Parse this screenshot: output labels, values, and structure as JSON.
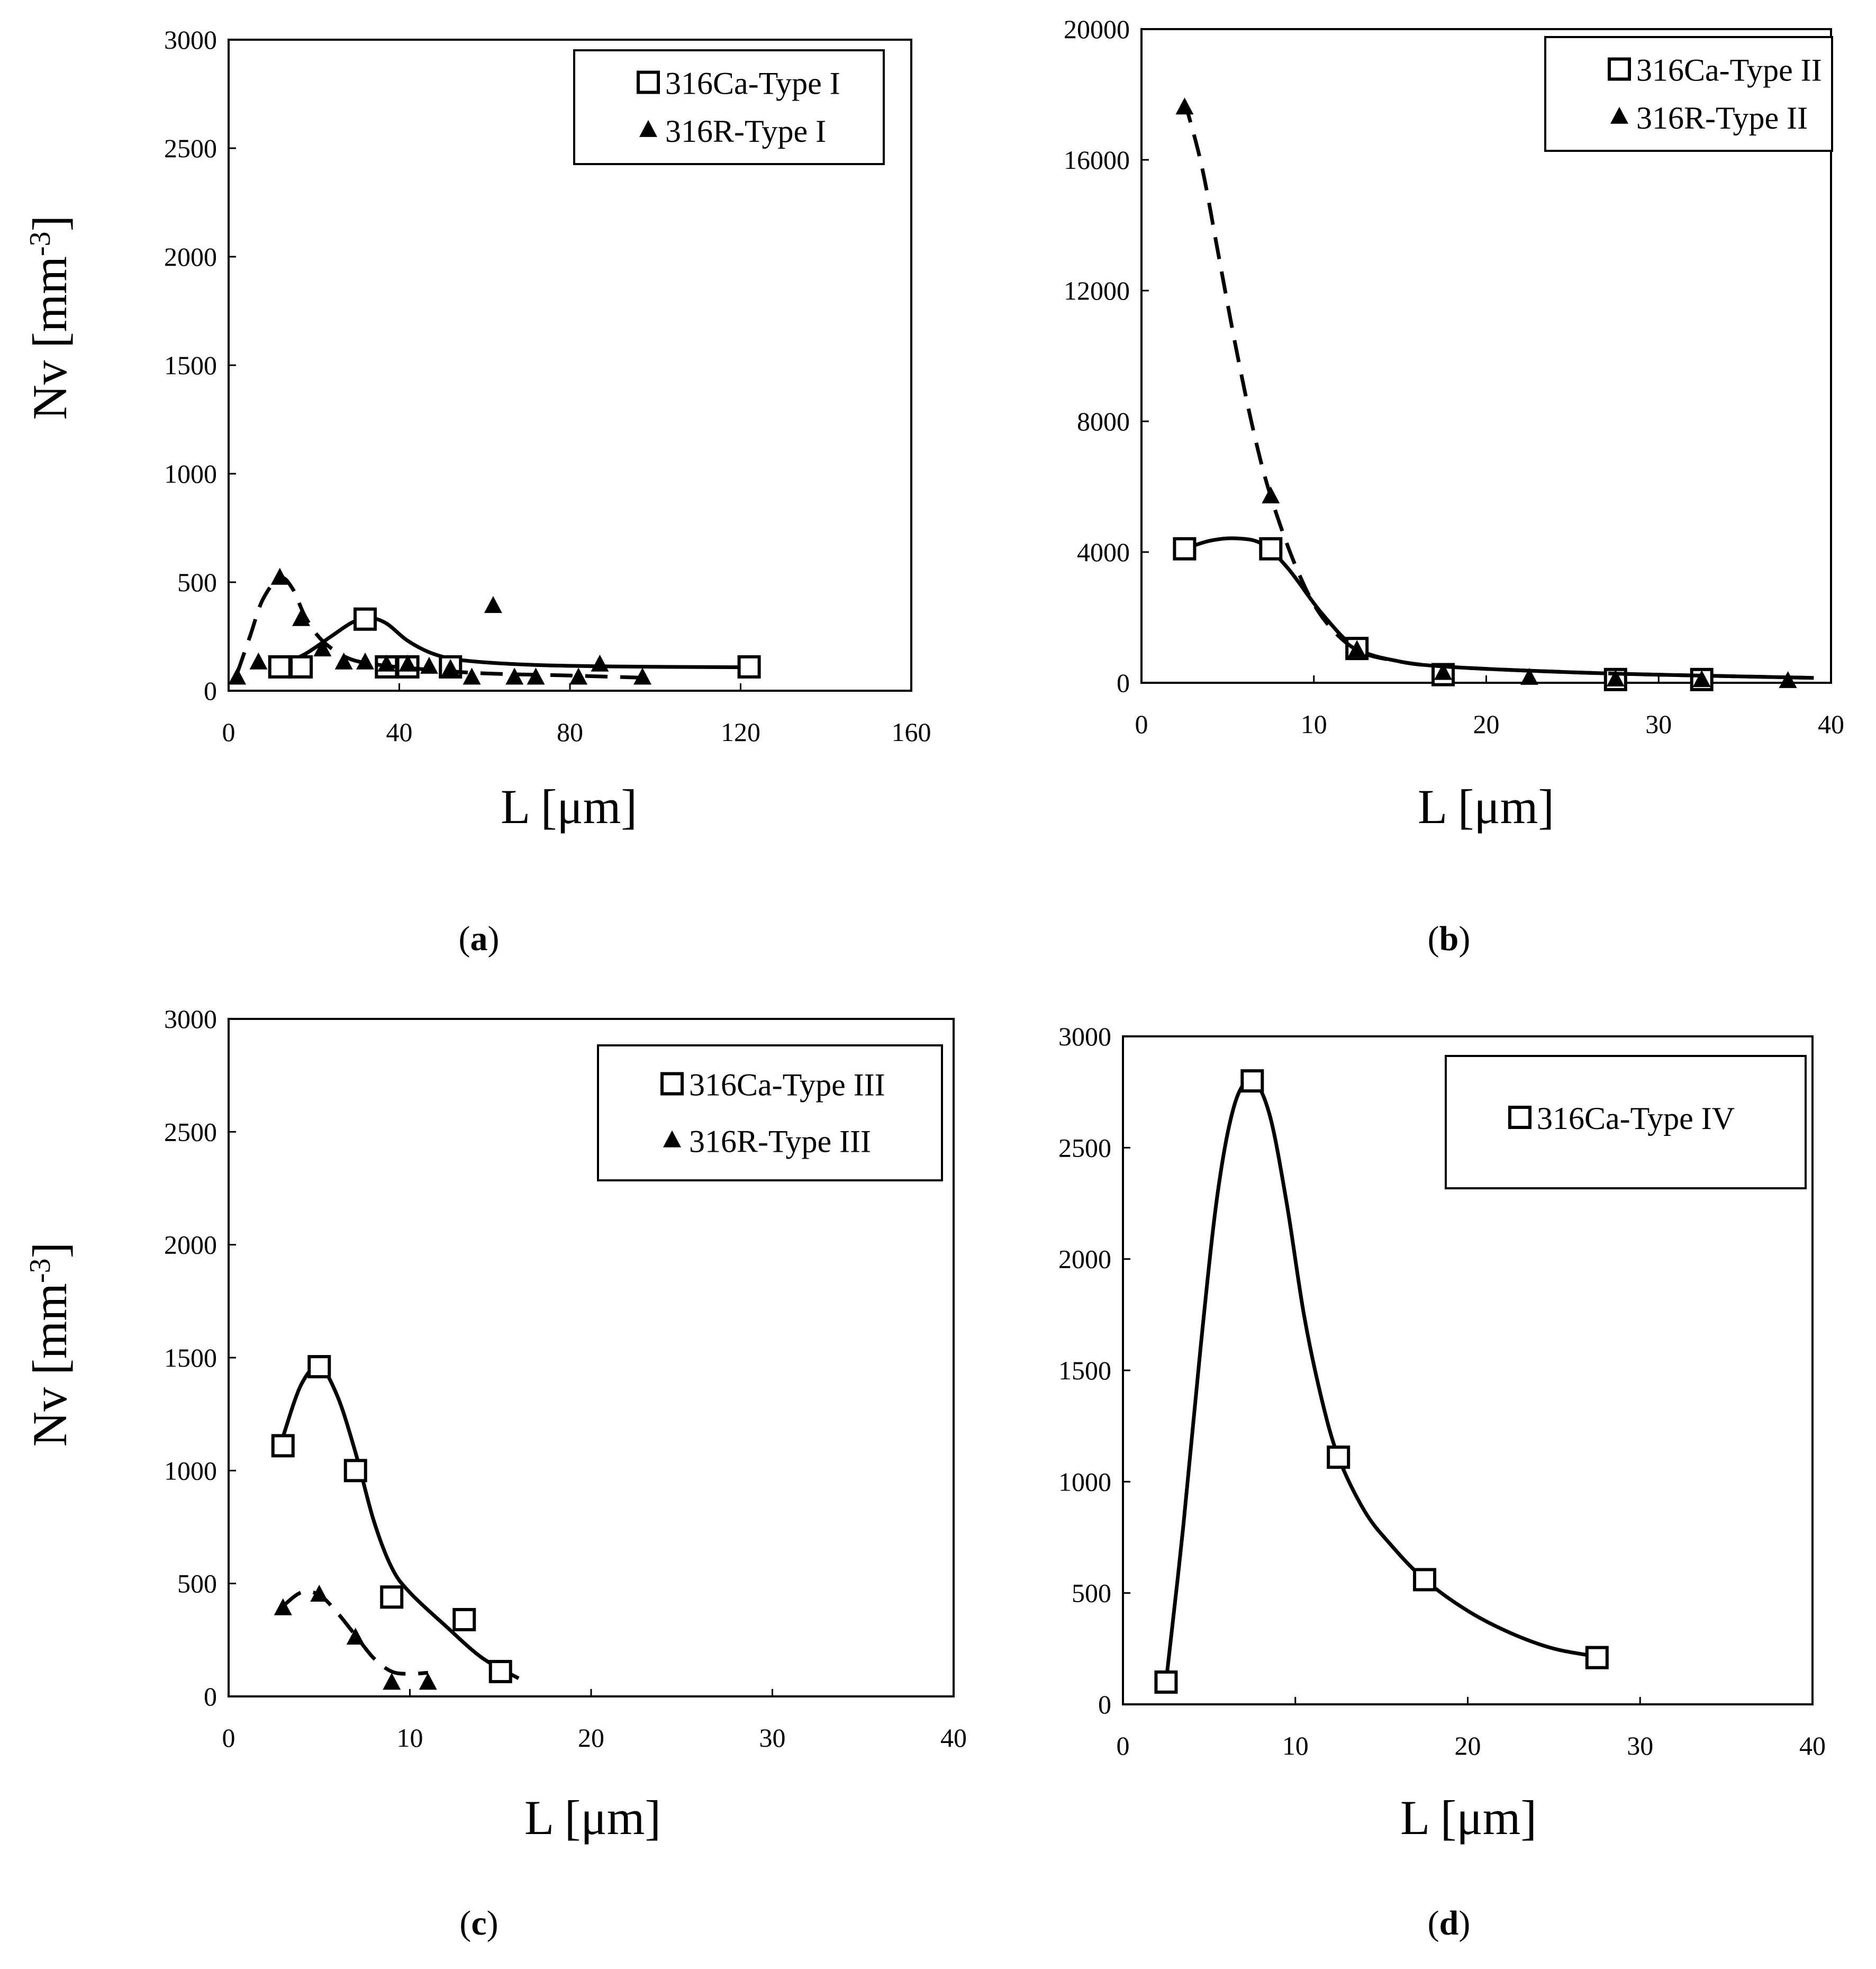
{
  "chart_data": [
    {
      "id": "a",
      "type": "scatter",
      "caption": "(a)",
      "caption_letter": "a",
      "xlabel": "L [μm]",
      "ylabel_main": "Nv [mm",
      "ylabel_sup": "-3",
      "ylabel_close": "]",
      "xlim": [
        0,
        160
      ],
      "ylim": [
        0,
        3000
      ],
      "xticks": [
        0,
        40,
        80,
        120,
        160
      ],
      "yticks": [
        0,
        500,
        1000,
        1500,
        2000,
        2500,
        3000
      ],
      "legend_position": "top-right",
      "series": [
        {
          "name": "316Ca-Type I",
          "marker": "square",
          "line": "solid",
          "x": [
            12,
            17,
            32,
            37,
            42,
            52,
            122
          ],
          "y": [
            110,
            110,
            330,
            110,
            110,
            110,
            110
          ],
          "curve": [
            [
              12,
              115
            ],
            [
              18,
              170
            ],
            [
              24,
              250
            ],
            [
              29,
              315
            ],
            [
              33,
              335
            ],
            [
              37,
              310
            ],
            [
              42,
              230
            ],
            [
              48,
              170
            ],
            [
              55,
              140
            ],
            [
              70,
              120
            ],
            [
              90,
              112
            ],
            [
              122,
              108
            ]
          ]
        },
        {
          "name": "316R-Type I",
          "marker": "triangle",
          "line": "dashed",
          "x": [
            2,
            7,
            12,
            17,
            22,
            27,
            32,
            37,
            42,
            47,
            52,
            57,
            62,
            67,
            72,
            82,
            87,
            97
          ],
          "y": [
            60,
            130,
            520,
            330,
            190,
            130,
            130,
            120,
            120,
            110,
            100,
            60,
            390,
            60,
            60,
            60,
            120,
            60
          ],
          "curve": [
            [
              2,
              80
            ],
            [
              5,
              250
            ],
            [
              8,
              420
            ],
            [
              12,
              520
            ],
            [
              15,
              470
            ],
            [
              18,
              340
            ],
            [
              22,
              230
            ],
            [
              28,
              150
            ],
            [
              35,
              120
            ],
            [
              45,
              100
            ],
            [
              60,
              80
            ],
            [
              80,
              70
            ],
            [
              97,
              60
            ]
          ]
        }
      ]
    },
    {
      "id": "b",
      "type": "scatter",
      "caption": "(b)",
      "caption_letter": "b",
      "xlabel": "L [μm]",
      "ylabel_main": "",
      "ylabel_sup": "",
      "ylabel_close": "",
      "xlim": [
        0,
        40
      ],
      "ylim": [
        0,
        20000
      ],
      "xticks": [
        0,
        10,
        20,
        30,
        40
      ],
      "yticks": [
        0,
        4000,
        8000,
        12000,
        16000,
        20000
      ],
      "legend_position": "top-right",
      "series": [
        {
          "name": "316Ca-Type II",
          "marker": "square",
          "line": "solid",
          "x": [
            2.5,
            7.5,
            12.5,
            17.5,
            27.5,
            32.5
          ],
          "y": [
            4100,
            4100,
            1050,
            250,
            100,
            100
          ],
          "curve": [
            [
              2.5,
              4100
            ],
            [
              4,
              4350
            ],
            [
              5.5,
              4420
            ],
            [
              7,
              4250
            ],
            [
              8.5,
              3500
            ],
            [
              10.5,
              2100
            ],
            [
              12.5,
              1050
            ],
            [
              15,
              650
            ],
            [
              17.5,
              500
            ],
            [
              22,
              380
            ],
            [
              27.5,
              280
            ],
            [
              32.5,
              220
            ],
            [
              39,
              150
            ]
          ]
        },
        {
          "name": "316R-Type II",
          "marker": "triangle",
          "line": "dashed",
          "x": [
            2.5,
            7.5,
            12.5,
            17.5,
            22.5,
            27.5,
            32.5,
            37.5
          ],
          "y": [
            17600,
            5700,
            1000,
            300,
            150,
            100,
            80,
            50
          ],
          "curve": [
            [
              2.5,
              17800
            ],
            [
              3.5,
              15800
            ],
            [
              4.5,
              13000
            ],
            [
              5.5,
              10200
            ],
            [
              6.5,
              7700
            ],
            [
              7.5,
              5700
            ],
            [
              9,
              3500
            ],
            [
              10.5,
              2000
            ],
            [
              12.5,
              1000
            ],
            [
              15,
              650
            ],
            [
              17.5,
              500
            ],
            [
              22,
              380
            ],
            [
              27.5,
              280
            ],
            [
              32.5,
              220
            ],
            [
              39,
              150
            ]
          ]
        }
      ]
    },
    {
      "id": "c",
      "type": "scatter",
      "caption": "(c)",
      "caption_letter": "c",
      "xlabel": "L [μm]",
      "ylabel_main": "Nv [mm",
      "ylabel_sup": "-3",
      "ylabel_close": "]",
      "xlim": [
        0,
        40
      ],
      "ylim": [
        0,
        3000
      ],
      "xticks": [
        0,
        10,
        20,
        30,
        40
      ],
      "yticks": [
        0,
        500,
        1000,
        1500,
        2000,
        2500,
        3000
      ],
      "legend_position": "top-right",
      "series": [
        {
          "name": "316Ca-Type III",
          "marker": "square",
          "line": "solid",
          "x": [
            3,
            5,
            7,
            9,
            13,
            15
          ],
          "y": [
            1110,
            1460,
            1000,
            440,
            340,
            110
          ],
          "curve": [
            [
              3,
              1150
            ],
            [
              4,
              1380
            ],
            [
              5,
              1460
            ],
            [
              6,
              1330
            ],
            [
              7,
              1080
            ],
            [
              8,
              780
            ],
            [
              9,
              570
            ],
            [
              10,
              460
            ],
            [
              12,
              310
            ],
            [
              14,
              170
            ],
            [
              16,
              80
            ]
          ]
        },
        {
          "name": "316R-Type III",
          "marker": "triangle",
          "line": "dashed",
          "x": [
            3,
            5,
            7,
            9,
            11
          ],
          "y": [
            390,
            450,
            260,
            60,
            60
          ],
          "curve": [
            [
              3,
              400
            ],
            [
              4,
              460
            ],
            [
              5,
              450
            ],
            [
              6,
              370
            ],
            [
              7,
              270
            ],
            [
              8,
              170
            ],
            [
              9,
              110
            ],
            [
              10,
              100
            ],
            [
              11,
              105
            ]
          ]
        }
      ]
    },
    {
      "id": "d",
      "type": "scatter",
      "caption": "(d)",
      "caption_letter": "d",
      "xlabel": "L [μm]",
      "ylabel_main": "",
      "ylabel_sup": "",
      "ylabel_close": "",
      "xlim": [
        0,
        40
      ],
      "ylim": [
        0,
        3000
      ],
      "xticks": [
        0,
        10,
        20,
        30,
        40
      ],
      "yticks": [
        0,
        500,
        1000,
        1500,
        2000,
        2500,
        3000
      ],
      "legend_position": "top-right",
      "series": [
        {
          "name": "316Ca-Type IV",
          "marker": "square",
          "line": "solid",
          "x": [
            2.5,
            7.5,
            12.5,
            17.5,
            27.5
          ],
          "y": [
            100,
            2800,
            1110,
            560,
            210
          ],
          "curve": [
            [
              2.5,
              100
            ],
            [
              3.5,
              800
            ],
            [
              4.5,
              1600
            ],
            [
              5.5,
              2300
            ],
            [
              6.5,
              2700
            ],
            [
              7.5,
              2800
            ],
            [
              8.5,
              2650
            ],
            [
              9.5,
              2250
            ],
            [
              10.5,
              1750
            ],
            [
              11.5,
              1380
            ],
            [
              12.5,
              1110
            ],
            [
              14,
              870
            ],
            [
              15.5,
              720
            ],
            [
              17.5,
              560
            ],
            [
              20,
              420
            ],
            [
              22.5,
              320
            ],
            [
              25,
              250
            ],
            [
              27.5,
              215
            ]
          ]
        }
      ]
    }
  ]
}
